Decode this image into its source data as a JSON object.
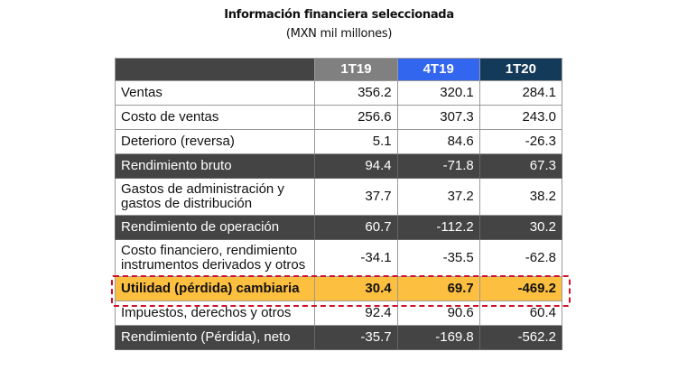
{
  "title": "Información financiera seleccionada",
  "subtitle": "(MXN mil millones)",
  "colors": {
    "header_dark": "#444444",
    "col_1T19": "#808080",
    "col_4T19": "#3366ee",
    "col_1T20": "#143a5a",
    "highlight": "#fdbf40",
    "dash": "#d0102a"
  },
  "columns": [
    "1T19",
    "4T19",
    "1T20"
  ],
  "rows": [
    {
      "label": "Ventas",
      "values": [
        "356.2",
        "320.1",
        "284.1"
      ]
    },
    {
      "label": "Costo de ventas",
      "values": [
        "256.6",
        "307.3",
        "243.0"
      ]
    },
    {
      "label": "Deterioro (reversa)",
      "values": [
        "5.1",
        "84.6",
        "-26.3"
      ]
    },
    {
      "label": "Rendimiento bruto",
      "values": [
        "94.4",
        "-71.8",
        "67.3"
      ]
    },
    {
      "label": "Gastos de administración y gastos de distribución",
      "values": [
        "37.7",
        "37.2",
        "38.2"
      ]
    },
    {
      "label": "Rendimiento de operación",
      "values": [
        "60.7",
        "-112.2",
        "30.2"
      ]
    },
    {
      "label": "Costo financiero, rendimiento instrumentos derivados y otros",
      "values": [
        "-34.1",
        "-35.5",
        "-62.8"
      ]
    },
    {
      "label": "Utilidad (pérdida) cambiaria",
      "values": [
        "30.4",
        "69.7",
        "-469.2"
      ]
    },
    {
      "label": "Impuestos, derechos y otros",
      "values": [
        "92.4",
        "90.6",
        "60.4"
      ]
    },
    {
      "label": "Rendimiento (Pérdida), neto",
      "values": [
        "-35.7",
        "-169.8",
        "-562.2"
      ]
    }
  ]
}
